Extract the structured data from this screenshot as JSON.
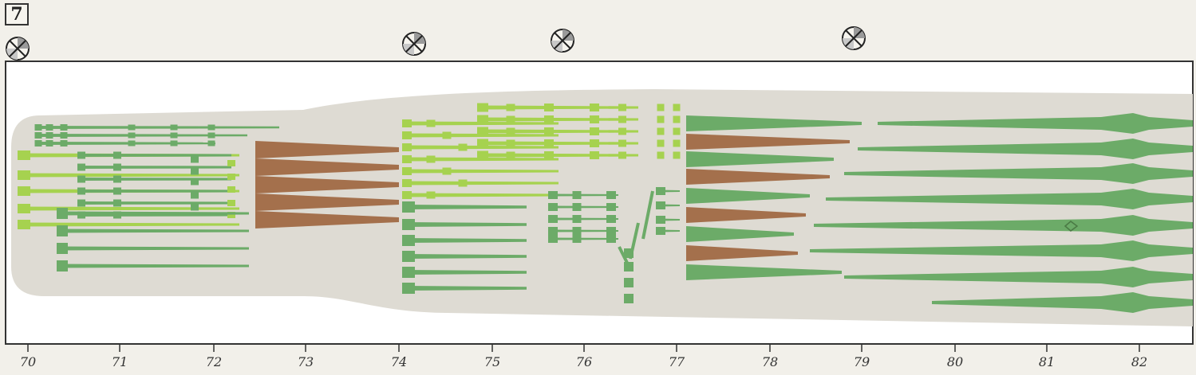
{
  "figure": {
    "label": "7"
  },
  "colors": {
    "background": "#f2f0ea",
    "plot_bg": "#ffffff",
    "band": "#dedbd3",
    "light_green": "#a6d24f",
    "medium_green": "#6cab68",
    "brown": "#a4704c",
    "border": "#333333"
  },
  "chart_data": {
    "type": "timeline",
    "title": "",
    "xlabel": "",
    "ylabel": "",
    "x_axis": {
      "min": 70,
      "max": 82.6,
      "ticks": [
        "70",
        "71",
        "72",
        "73",
        "74",
        "75",
        "76",
        "77",
        "78",
        "79",
        "80",
        "81",
        "82"
      ]
    },
    "markers": [
      {
        "x": 70.1,
        "icon": "crossed-circle-icon"
      },
      {
        "x": 74.1,
        "icon": "crossed-circle-icon"
      },
      {
        "x": 75.6,
        "icon": "crossed-circle-icon"
      },
      {
        "x": 78.8,
        "icon": "crossed-circle-icon"
      }
    ],
    "groups": [
      {
        "name": "",
        "color": "light_green",
        "x_start": 70.1,
        "x_end": 72.6
      },
      {
        "name": "",
        "color": "medium_green",
        "x_start": 70.3,
        "x_end": 72.5
      },
      {
        "name": "",
        "color": "brown",
        "x_start": 72.6,
        "x_end": 74.0
      },
      {
        "name": "",
        "color": "light_green",
        "x_start": 74.0,
        "x_end": 76.5
      },
      {
        "name": "",
        "color": "medium_green",
        "x_start": 74.0,
        "x_end": 77.1
      },
      {
        "name": "",
        "color": "medium_green",
        "x_start": 77.1,
        "x_end": 78.8
      },
      {
        "name": "",
        "color": "brown",
        "x_start": 77.1,
        "x_end": 78.7
      },
      {
        "name": "",
        "color": "medium_green",
        "x_start": 78.7,
        "x_end": 82.6
      }
    ],
    "grid": false,
    "legend": "none"
  }
}
